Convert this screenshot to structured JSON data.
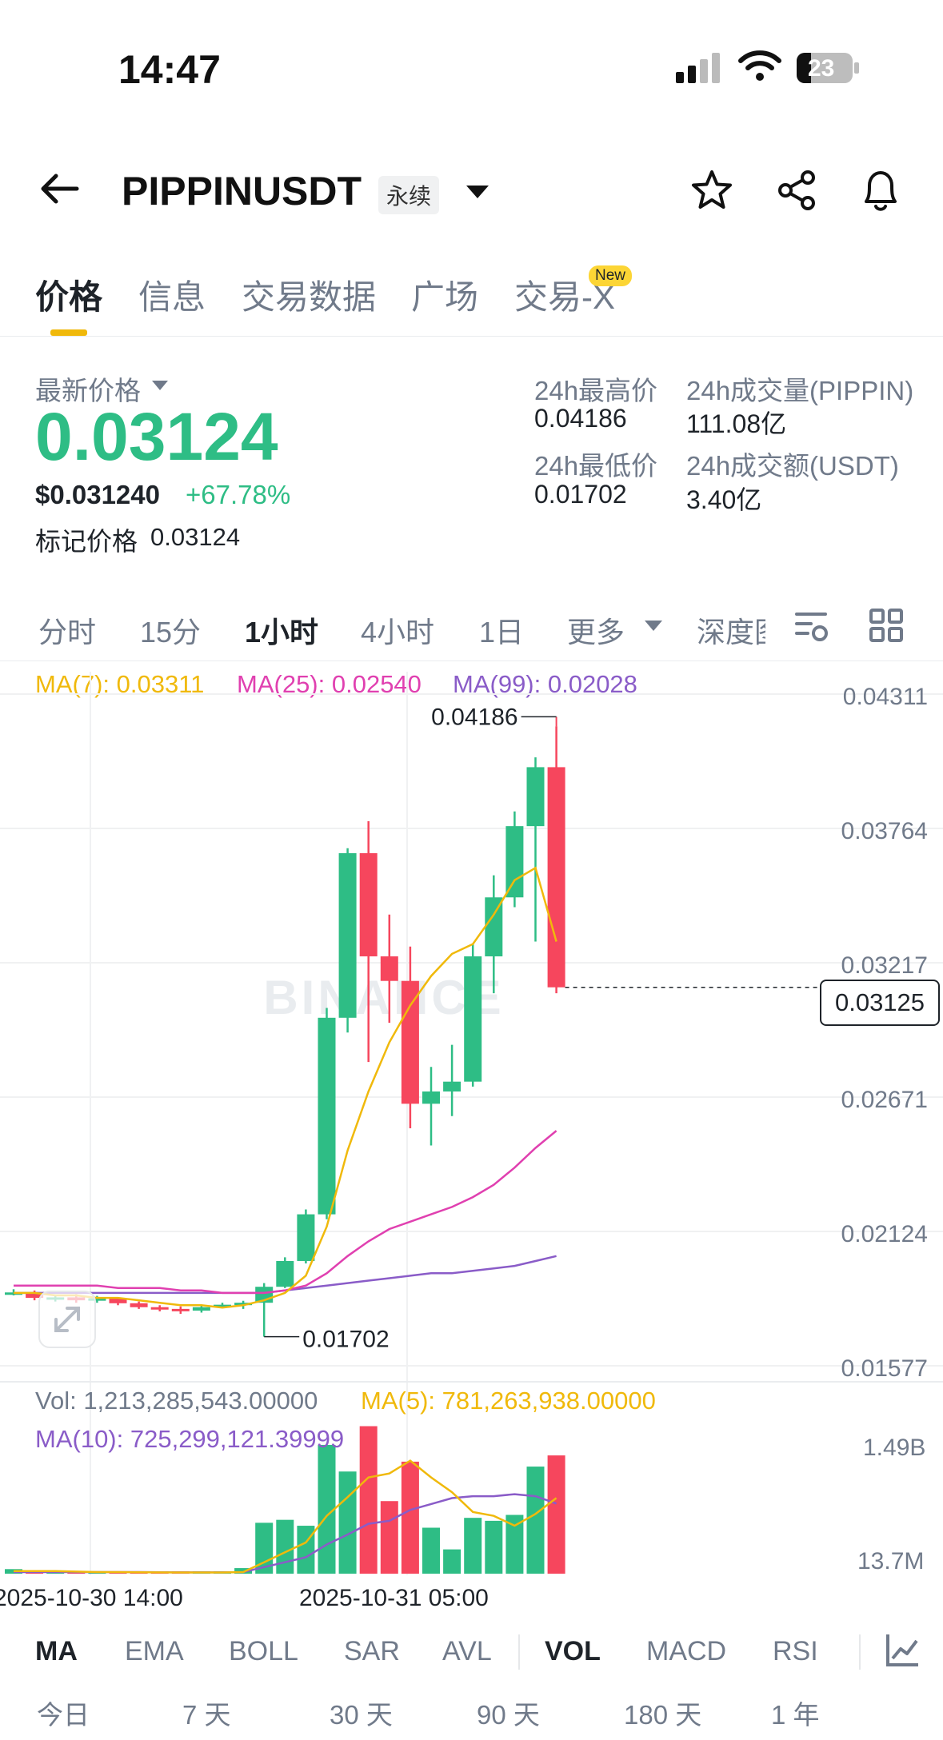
{
  "status_bar": {
    "time": "14:47",
    "battery": "23"
  },
  "header": {
    "symbol": "PIPPINUSDT",
    "badge": "永续"
  },
  "tabs": [
    {
      "label": "价格",
      "active": true
    },
    {
      "label": "信息"
    },
    {
      "label": "交易数据"
    },
    {
      "label": "广场"
    },
    {
      "label": "交易-X",
      "badge": "New"
    }
  ],
  "price_panel": {
    "latest_label": "最新价格",
    "latest_price": "0.03124",
    "usd_price": "$0.031240",
    "change_pct": "+67.78%",
    "mark_label": "标记价格",
    "mark_price": "0.03124",
    "high_label": "24h最高价",
    "high_value": "0.04186",
    "low_label": "24h最低价",
    "low_value": "0.01702",
    "vol_base_label": "24h成交量(PIPPIN)",
    "vol_base_value": "111.08亿",
    "vol_quote_label": "24h成交额(USDT)",
    "vol_quote_value": "3.40亿"
  },
  "intervals": [
    {
      "label": "分时"
    },
    {
      "label": "15分"
    },
    {
      "label": "1小时",
      "active": true
    },
    {
      "label": "4小时"
    },
    {
      "label": "1日"
    },
    {
      "label": "更多"
    },
    {
      "label": "深度图"
    }
  ],
  "ma_legend": {
    "ma7": "MA(7): 0.03311",
    "ma25": "MA(25): 0.02540",
    "ma99": "MA(99): 0.02028"
  },
  "watermark": "BINANCE",
  "chart_data": {
    "type": "candlestick",
    "y_ticks": [
      "0.04311",
      "0.03764",
      "0.03217",
      "0.02671",
      "0.02124",
      "0.01577"
    ],
    "ylim": [
      0.01577,
      0.04311
    ],
    "current_price_label": "0.03125",
    "high_marker": "0.04186",
    "low_marker": "0.01702",
    "x_ticks": [
      "2025-10-30 14:00",
      "2025-10-31 05:00"
    ],
    "candles": [
      {
        "o": 0.0188,
        "h": 0.01895,
        "l": 0.0187,
        "c": 0.01882
      },
      {
        "o": 0.01882,
        "h": 0.0189,
        "l": 0.0185,
        "c": 0.0186
      },
      {
        "o": 0.0186,
        "h": 0.01872,
        "l": 0.01845,
        "c": 0.01862
      },
      {
        "o": 0.01862,
        "h": 0.01875,
        "l": 0.0184,
        "c": 0.0185
      },
      {
        "o": 0.0185,
        "h": 0.01868,
        "l": 0.0184,
        "c": 0.01858
      },
      {
        "o": 0.01858,
        "h": 0.01862,
        "l": 0.0183,
        "c": 0.01838
      },
      {
        "o": 0.01838,
        "h": 0.01845,
        "l": 0.01815,
        "c": 0.01822
      },
      {
        "o": 0.01822,
        "h": 0.0183,
        "l": 0.01805,
        "c": 0.01815
      },
      {
        "o": 0.01815,
        "h": 0.01825,
        "l": 0.01795,
        "c": 0.01808
      },
      {
        "o": 0.01808,
        "h": 0.0183,
        "l": 0.018,
        "c": 0.01822
      },
      {
        "o": 0.01822,
        "h": 0.0184,
        "l": 0.01818,
        "c": 0.01832
      },
      {
        "o": 0.01832,
        "h": 0.01848,
        "l": 0.01815,
        "c": 0.0184
      },
      {
        "o": 0.0184,
        "h": 0.0192,
        "l": 0.01702,
        "c": 0.01905
      },
      {
        "o": 0.01905,
        "h": 0.02025,
        "l": 0.019,
        "c": 0.0201
      },
      {
        "o": 0.0201,
        "h": 0.0222,
        "l": 0.02,
        "c": 0.022
      },
      {
        "o": 0.022,
        "h": 0.0304,
        "l": 0.0218,
        "c": 0.03
      },
      {
        "o": 0.03,
        "h": 0.0369,
        "l": 0.0294,
        "c": 0.0367
      },
      {
        "o": 0.0367,
        "h": 0.038,
        "l": 0.0282,
        "c": 0.0325
      },
      {
        "o": 0.0325,
        "h": 0.0342,
        "l": 0.0298,
        "c": 0.0315
      },
      {
        "o": 0.0315,
        "h": 0.0329,
        "l": 0.0255,
        "c": 0.0265
      },
      {
        "o": 0.0265,
        "h": 0.028,
        "l": 0.0248,
        "c": 0.027
      },
      {
        "o": 0.027,
        "h": 0.0289,
        "l": 0.026,
        "c": 0.0274
      },
      {
        "o": 0.0274,
        "h": 0.033,
        "l": 0.0272,
        "c": 0.0325
      },
      {
        "o": 0.0325,
        "h": 0.0358,
        "l": 0.031,
        "c": 0.0349
      },
      {
        "o": 0.0349,
        "h": 0.0384,
        "l": 0.0345,
        "c": 0.0378
      },
      {
        "o": 0.0378,
        "h": 0.0406,
        "l": 0.0331,
        "c": 0.0402
      },
      {
        "o": 0.0402,
        "h": 0.04186,
        "l": 0.031,
        "c": 0.03124
      }
    ],
    "ma7": [
      0.0188,
      0.0188,
      0.0187,
      0.0187,
      0.0186,
      0.0186,
      0.0185,
      0.0184,
      0.0183,
      0.0183,
      0.0182,
      0.0183,
      0.0185,
      0.0188,
      0.0195,
      0.0215,
      0.0246,
      0.027,
      0.029,
      0.0305,
      0.0317,
      0.0326,
      0.033,
      0.0342,
      0.0356,
      0.0361,
      0.0331
    ],
    "ma25": [
      0.0191,
      0.0191,
      0.0191,
      0.0191,
      0.0191,
      0.019,
      0.019,
      0.019,
      0.0189,
      0.0189,
      0.0188,
      0.0188,
      0.0188,
      0.0189,
      0.0191,
      0.0196,
      0.0203,
      0.0209,
      0.0214,
      0.0217,
      0.022,
      0.0223,
      0.0227,
      0.0232,
      0.0239,
      0.0247,
      0.0254
    ],
    "ma99": [
      0.0188,
      0.0188,
      0.0188,
      0.0188,
      0.0188,
      0.0188,
      0.0188,
      0.0188,
      0.0188,
      0.0188,
      0.0188,
      0.0188,
      0.0188,
      0.0189,
      0.019,
      0.0191,
      0.0192,
      0.0193,
      0.0194,
      0.0195,
      0.0196,
      0.0196,
      0.0197,
      0.0198,
      0.0199,
      0.0201,
      0.0203
    ],
    "volume": {
      "y_ticks": [
        "1.49B",
        "13.7M"
      ],
      "ylim": [
        13700000,
        1490000000
      ],
      "legend_vol": "Vol: 1,213,285,543.00000",
      "legend_ma5": "MA(5): 781,263,938.00000",
      "legend_ma10": "MA(10): 725,299,121.39999",
      "values": [
        60000000,
        50000000,
        30000000,
        30000000,
        25000000,
        25000000,
        30000000,
        25000000,
        20000000,
        30000000,
        25000000,
        70000000,
        530000000,
        560000000,
        500000000,
        1320000000,
        1050000000,
        1510000000,
        750000000,
        1150000000,
        480000000,
        260000000,
        580000000,
        550000000,
        610000000,
        1100000000,
        1213285543
      ],
      "ma5": [
        40000000,
        40000000,
        40000000,
        35000000,
        30000000,
        30000000,
        28000000,
        27000000,
        26000000,
        26000000,
        26000000,
        30000000,
        130000000,
        230000000,
        330000000,
        600000000,
        790000000,
        990000000,
        1030000000,
        1160000000,
        990000000,
        840000000,
        640000000,
        600000000,
        500000000,
        620000000,
        781263938
      ],
      "ma10": [
        30000000,
        30000000,
        30000000,
        30000000,
        30000000,
        30000000,
        30000000,
        28000000,
        27000000,
        27000000,
        27000000,
        30000000,
        80000000,
        130000000,
        180000000,
        310000000,
        410000000,
        520000000,
        550000000,
        660000000,
        720000000,
        780000000,
        800000000,
        800000000,
        820000000,
        800000000,
        725299121
      ]
    }
  },
  "indicator_tabs": [
    {
      "label": "MA",
      "active": true
    },
    {
      "label": "EMA"
    },
    {
      "label": "BOLL"
    },
    {
      "label": "SAR"
    },
    {
      "label": "AVL"
    },
    {
      "label": "VOL",
      "active": true
    },
    {
      "label": "MACD"
    },
    {
      "label": "RSI"
    }
  ],
  "range_tabs": [
    "今日",
    "7 天",
    "30 天",
    "90 天",
    "180 天",
    "1 年"
  ],
  "colors": {
    "up": "#2ebd85",
    "down": "#f6465d",
    "ma7": "#f0b90b",
    "ma25": "#e040b0",
    "ma99": "#8a5cc8",
    "accent": "#fcd535"
  }
}
